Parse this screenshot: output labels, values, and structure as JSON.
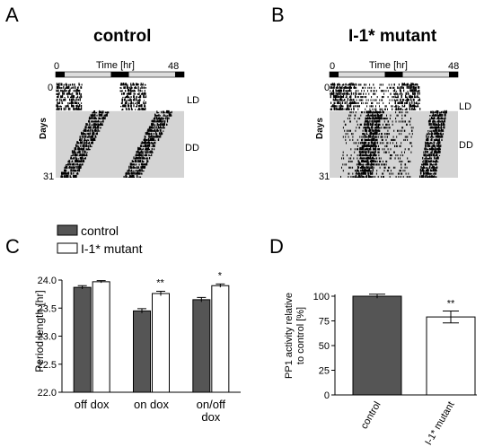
{
  "panels": {
    "a": {
      "label": "A",
      "title": "control"
    },
    "b": {
      "label": "B",
      "title": "I-1* mutant"
    },
    "c": {
      "label": "C"
    },
    "d": {
      "label": "D"
    }
  },
  "actogram": {
    "time_axis_label": "Time [hr]",
    "time_start": "0",
    "time_end": "48",
    "y_label": "Days",
    "day_start": "0",
    "day_end": "31",
    "ld_label": "LD",
    "dd_label": "DD"
  },
  "colors": {
    "control": "#555555",
    "mutant": "#ffffff",
    "dd_shade": "#d4d4d4"
  },
  "chart_data": [
    {
      "type": "bar",
      "panel": "C",
      "categories": [
        "off dox",
        "on dox",
        "on/off\ndox"
      ],
      "series": [
        {
          "name": "control",
          "values": [
            23.87,
            23.45,
            23.65
          ],
          "errors": [
            0.03,
            0.04,
            0.04
          ]
        },
        {
          "name": "I-1* mutant",
          "values": [
            23.97,
            23.76,
            23.9
          ],
          "errors": [
            0.02,
            0.04,
            0.03
          ]
        }
      ],
      "ylabel": "Period length [hr]",
      "ylim": [
        22.0,
        24.0
      ],
      "yticks": [
        "22.0",
        "22.5",
        "23.0",
        "23.5",
        "24.0"
      ],
      "annotations": [
        "",
        "**",
        "*"
      ],
      "legend_placement": "top"
    },
    {
      "type": "bar",
      "panel": "D",
      "categories": [
        "control",
        "I-1* mutant"
      ],
      "values": [
        100,
        79
      ],
      "errors": [
        2,
        6
      ],
      "ylabel": "PP1 activity relative\nto control [%]",
      "ylim": [
        0,
        100
      ],
      "yticks": [
        "0",
        "25",
        "50",
        "75",
        "100"
      ],
      "annotations": [
        "",
        "**"
      ]
    }
  ]
}
